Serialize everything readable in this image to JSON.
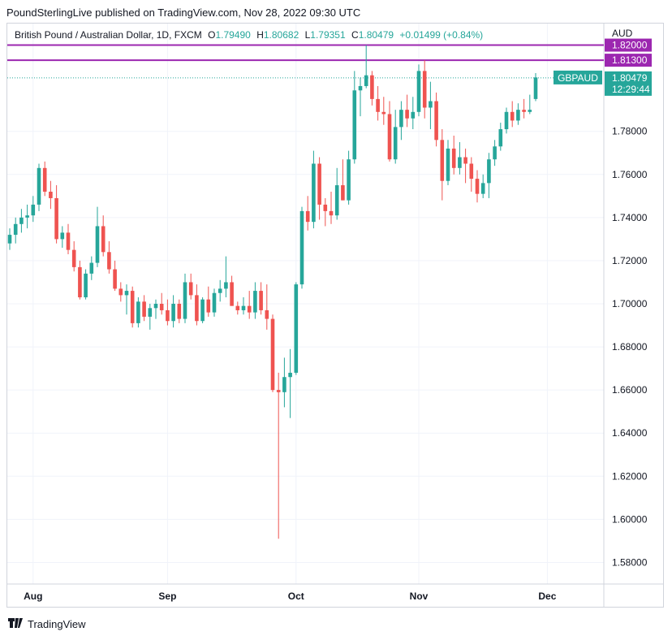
{
  "publisher_line": "PoundSterlingLive published on TradingView.com, Nov 28, 2022 09:30 UTC",
  "legend": {
    "title": "British Pound / Australian Dollar, 1D, FXCM",
    "open_label": "O",
    "open": "1.79490",
    "high_label": "H",
    "high": "1.80682",
    "low_label": "L",
    "low": "1.79351",
    "close_label": "C",
    "close": "1.80479",
    "change": "+0.01499 (+0.84%)"
  },
  "currency": "AUD",
  "footer": {
    "logo_text": "TradingView"
  },
  "colors": {
    "up": "#26a69a",
    "down": "#ef5350",
    "level": "#9c27b0",
    "grid": "#f0f3fa"
  },
  "chart_data": {
    "type": "candlestick",
    "symbol_label": "GBPAUD",
    "last_price": "1.80479",
    "countdown": "12:29:44",
    "ylim": [
      1.57,
      1.83
    ],
    "y_ticks": [
      "1.58000",
      "1.60000",
      "1.62000",
      "1.64000",
      "1.66000",
      "1.68000",
      "1.70000",
      "1.72000",
      "1.74000",
      "1.76000",
      "1.78000"
    ],
    "x_ticks": [
      {
        "label": "Aug",
        "index": 4
      },
      {
        "label": "Sep",
        "index": 27
      },
      {
        "label": "Oct",
        "index": 49
      },
      {
        "label": "Nov",
        "index": 70
      },
      {
        "label": "Dec",
        "index": 92
      }
    ],
    "levels": [
      {
        "value": 1.82,
        "label": "1.82000"
      },
      {
        "value": 1.813,
        "label": "1.81300"
      }
    ],
    "candles": [
      {
        "o": 1.728,
        "h": 1.735,
        "l": 1.725,
        "c": 1.732
      },
      {
        "o": 1.732,
        "h": 1.74,
        "l": 1.728,
        "c": 1.737
      },
      {
        "o": 1.737,
        "h": 1.744,
        "l": 1.733,
        "c": 1.74
      },
      {
        "o": 1.74,
        "h": 1.746,
        "l": 1.735,
        "c": 1.741
      },
      {
        "o": 1.741,
        "h": 1.75,
        "l": 1.738,
        "c": 1.746
      },
      {
        "o": 1.746,
        "h": 1.765,
        "l": 1.743,
        "c": 1.763
      },
      {
        "o": 1.763,
        "h": 1.766,
        "l": 1.75,
        "c": 1.752
      },
      {
        "o": 1.752,
        "h": 1.757,
        "l": 1.744,
        "c": 1.749
      },
      {
        "o": 1.749,
        "h": 1.755,
        "l": 1.728,
        "c": 1.73
      },
      {
        "o": 1.73,
        "h": 1.736,
        "l": 1.726,
        "c": 1.733
      },
      {
        "o": 1.733,
        "h": 1.737,
        "l": 1.723,
        "c": 1.725
      },
      {
        "o": 1.725,
        "h": 1.729,
        "l": 1.715,
        "c": 1.717
      },
      {
        "o": 1.717,
        "h": 1.72,
        "l": 1.702,
        "c": 1.703
      },
      {
        "o": 1.703,
        "h": 1.716,
        "l": 1.702,
        "c": 1.714
      },
      {
        "o": 1.714,
        "h": 1.722,
        "l": 1.711,
        "c": 1.719
      },
      {
        "o": 1.719,
        "h": 1.745,
        "l": 1.717,
        "c": 1.736
      },
      {
        "o": 1.736,
        "h": 1.741,
        "l": 1.722,
        "c": 1.724
      },
      {
        "o": 1.724,
        "h": 1.729,
        "l": 1.714,
        "c": 1.716
      },
      {
        "o": 1.716,
        "h": 1.72,
        "l": 1.706,
        "c": 1.707
      },
      {
        "o": 1.707,
        "h": 1.71,
        "l": 1.701,
        "c": 1.704
      },
      {
        "o": 1.704,
        "h": 1.709,
        "l": 1.695,
        "c": 1.706
      },
      {
        "o": 1.706,
        "h": 1.708,
        "l": 1.689,
        "c": 1.691
      },
      {
        "o": 1.691,
        "h": 1.703,
        "l": 1.689,
        "c": 1.701
      },
      {
        "o": 1.701,
        "h": 1.704,
        "l": 1.692,
        "c": 1.694
      },
      {
        "o": 1.694,
        "h": 1.7,
        "l": 1.688,
        "c": 1.698
      },
      {
        "o": 1.698,
        "h": 1.702,
        "l": 1.693,
        "c": 1.7
      },
      {
        "o": 1.7,
        "h": 1.705,
        "l": 1.695,
        "c": 1.697
      },
      {
        "o": 1.697,
        "h": 1.702,
        "l": 1.69,
        "c": 1.692
      },
      {
        "o": 1.692,
        "h": 1.704,
        "l": 1.689,
        "c": 1.7
      },
      {
        "o": 1.7,
        "h": 1.702,
        "l": 1.691,
        "c": 1.693
      },
      {
        "o": 1.693,
        "h": 1.714,
        "l": 1.691,
        "c": 1.71
      },
      {
        "o": 1.71,
        "h": 1.714,
        "l": 1.702,
        "c": 1.704
      },
      {
        "o": 1.704,
        "h": 1.709,
        "l": 1.69,
        "c": 1.692
      },
      {
        "o": 1.692,
        "h": 1.703,
        "l": 1.691,
        "c": 1.702
      },
      {
        "o": 1.702,
        "h": 1.708,
        "l": 1.694,
        "c": 1.696
      },
      {
        "o": 1.696,
        "h": 1.707,
        "l": 1.694,
        "c": 1.705
      },
      {
        "o": 1.705,
        "h": 1.711,
        "l": 1.701,
        "c": 1.707
      },
      {
        "o": 1.707,
        "h": 1.722,
        "l": 1.703,
        "c": 1.71
      },
      {
        "o": 1.71,
        "h": 1.713,
        "l": 1.7,
        "c": 1.699
      },
      {
        "o": 1.699,
        "h": 1.701,
        "l": 1.695,
        "c": 1.697
      },
      {
        "o": 1.697,
        "h": 1.703,
        "l": 1.695,
        "c": 1.699
      },
      {
        "o": 1.699,
        "h": 1.706,
        "l": 1.693,
        "c": 1.696
      },
      {
        "o": 1.696,
        "h": 1.71,
        "l": 1.693,
        "c": 1.706
      },
      {
        "o": 1.706,
        "h": 1.71,
        "l": 1.695,
        "c": 1.697
      },
      {
        "o": 1.697,
        "h": 1.709,
        "l": 1.688,
        "c": 1.693
      },
      {
        "o": 1.693,
        "h": 1.695,
        "l": 1.659,
        "c": 1.66
      },
      {
        "o": 1.66,
        "h": 1.668,
        "l": 1.591,
        "c": 1.659
      },
      {
        "o": 1.659,
        "h": 1.675,
        "l": 1.652,
        "c": 1.666
      },
      {
        "o": 1.666,
        "h": 1.679,
        "l": 1.647,
        "c": 1.668
      },
      {
        "o": 1.668,
        "h": 1.71,
        "l": 1.667,
        "c": 1.709
      },
      {
        "o": 1.709,
        "h": 1.745,
        "l": 1.707,
        "c": 1.743
      },
      {
        "o": 1.743,
        "h": 1.75,
        "l": 1.734,
        "c": 1.738
      },
      {
        "o": 1.738,
        "h": 1.771,
        "l": 1.735,
        "c": 1.765
      },
      {
        "o": 1.765,
        "h": 1.768,
        "l": 1.739,
        "c": 1.746
      },
      {
        "o": 1.746,
        "h": 1.749,
        "l": 1.736,
        "c": 1.743
      },
      {
        "o": 1.743,
        "h": 1.752,
        "l": 1.737,
        "c": 1.741
      },
      {
        "o": 1.741,
        "h": 1.763,
        "l": 1.739,
        "c": 1.755
      },
      {
        "o": 1.755,
        "h": 1.767,
        "l": 1.748,
        "c": 1.748
      },
      {
        "o": 1.748,
        "h": 1.771,
        "l": 1.746,
        "c": 1.767
      },
      {
        "o": 1.767,
        "h": 1.808,
        "l": 1.765,
        "c": 1.799
      },
      {
        "o": 1.799,
        "h": 1.805,
        "l": 1.787,
        "c": 1.801
      },
      {
        "o": 1.801,
        "h": 1.82,
        "l": 1.8,
        "c": 1.806
      },
      {
        "o": 1.806,
        "h": 1.808,
        "l": 1.792,
        "c": 1.795
      },
      {
        "o": 1.795,
        "h": 1.801,
        "l": 1.785,
        "c": 1.789
      },
      {
        "o": 1.789,
        "h": 1.796,
        "l": 1.783,
        "c": 1.788
      },
      {
        "o": 1.788,
        "h": 1.794,
        "l": 1.766,
        "c": 1.767
      },
      {
        "o": 1.767,
        "h": 1.79,
        "l": 1.765,
        "c": 1.782
      },
      {
        "o": 1.782,
        "h": 1.794,
        "l": 1.776,
        "c": 1.79
      },
      {
        "o": 1.79,
        "h": 1.797,
        "l": 1.782,
        "c": 1.786
      },
      {
        "o": 1.786,
        "h": 1.796,
        "l": 1.781,
        "c": 1.789
      },
      {
        "o": 1.789,
        "h": 1.811,
        "l": 1.787,
        "c": 1.808
      },
      {
        "o": 1.808,
        "h": 1.813,
        "l": 1.786,
        "c": 1.791
      },
      {
        "o": 1.791,
        "h": 1.803,
        "l": 1.781,
        "c": 1.794
      },
      {
        "o": 1.794,
        "h": 1.798,
        "l": 1.773,
        "c": 1.776
      },
      {
        "o": 1.776,
        "h": 1.781,
        "l": 1.748,
        "c": 1.757
      },
      {
        "o": 1.757,
        "h": 1.776,
        "l": 1.755,
        "c": 1.772
      },
      {
        "o": 1.772,
        "h": 1.778,
        "l": 1.76,
        "c": 1.763
      },
      {
        "o": 1.763,
        "h": 1.775,
        "l": 1.76,
        "c": 1.768
      },
      {
        "o": 1.768,
        "h": 1.772,
        "l": 1.756,
        "c": 1.765
      },
      {
        "o": 1.765,
        "h": 1.768,
        "l": 1.752,
        "c": 1.758
      },
      {
        "o": 1.758,
        "h": 1.762,
        "l": 1.747,
        "c": 1.751
      },
      {
        "o": 1.751,
        "h": 1.76,
        "l": 1.749,
        "c": 1.756
      },
      {
        "o": 1.756,
        "h": 1.77,
        "l": 1.749,
        "c": 1.767
      },
      {
        "o": 1.767,
        "h": 1.776,
        "l": 1.764,
        "c": 1.773
      },
      {
        "o": 1.773,
        "h": 1.784,
        "l": 1.771,
        "c": 1.781
      },
      {
        "o": 1.781,
        "h": 1.791,
        "l": 1.779,
        "c": 1.789
      },
      {
        "o": 1.789,
        "h": 1.794,
        "l": 1.782,
        "c": 1.785
      },
      {
        "o": 1.785,
        "h": 1.793,
        "l": 1.783,
        "c": 1.79
      },
      {
        "o": 1.79,
        "h": 1.795,
        "l": 1.786,
        "c": 1.789
      },
      {
        "o": 1.789,
        "h": 1.797,
        "l": 1.788,
        "c": 1.79
      },
      {
        "o": 1.795,
        "h": 1.807,
        "l": 1.794,
        "c": 1.805
      }
    ]
  }
}
